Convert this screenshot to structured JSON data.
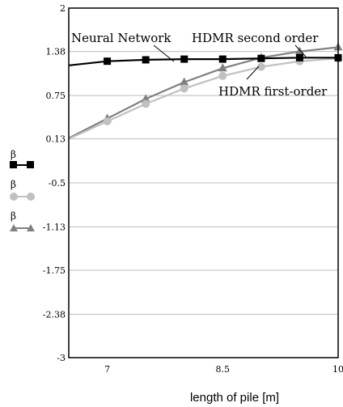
{
  "chart_data": {
    "type": "line",
    "title": "",
    "xlabel": "length of pile [m]",
    "ylabel": "",
    "xlim": [
      6.5,
      10
    ],
    "ylim": [
      -3,
      2
    ],
    "xticks": [
      "7",
      "8.5",
      "10"
    ],
    "yticks": [
      "2",
      "1.38",
      "0.75",
      "0.13",
      "-0.5",
      "-1.13",
      "-1.75",
      "-2.38",
      "-3"
    ],
    "grid": "horizontal",
    "legend": [
      {
        "label": "β",
        "marker": "square",
        "color": "#000000"
      },
      {
        "label": "β",
        "marker": "circle",
        "color": "#c0c0c0"
      },
      {
        "label": "β",
        "marker": "triangle",
        "color": "#808080"
      }
    ],
    "series": [
      {
        "name": "Neural Network",
        "color": "#000000",
        "marker": "square",
        "x": [
          6.5,
          7,
          7.5,
          8,
          8.5,
          9,
          9.5,
          10
        ],
        "y": [
          1.18,
          1.24,
          1.26,
          1.27,
          1.27,
          1.28,
          1.29,
          1.29
        ]
      },
      {
        "name": "HDMR second order",
        "color": "#808080",
        "marker": "triangle",
        "x": [
          6.5,
          7,
          7.5,
          8,
          8.5,
          9,
          9.5,
          10
        ],
        "y": [
          0.14,
          0.42,
          0.7,
          0.94,
          1.14,
          1.29,
          1.38,
          1.44
        ]
      },
      {
        "name": "HDMR first-order",
        "color": "#c0c0c0",
        "marker": "circle",
        "x": [
          6.5,
          7,
          7.5,
          8,
          8.5,
          9,
          9.5,
          10
        ],
        "y": [
          0.13,
          0.38,
          0.63,
          0.85,
          1.03,
          1.16,
          1.24,
          1.28
        ]
      }
    ],
    "annotations": [
      "Neural Network",
      "HDMR second order",
      "HDMR first-order"
    ]
  }
}
